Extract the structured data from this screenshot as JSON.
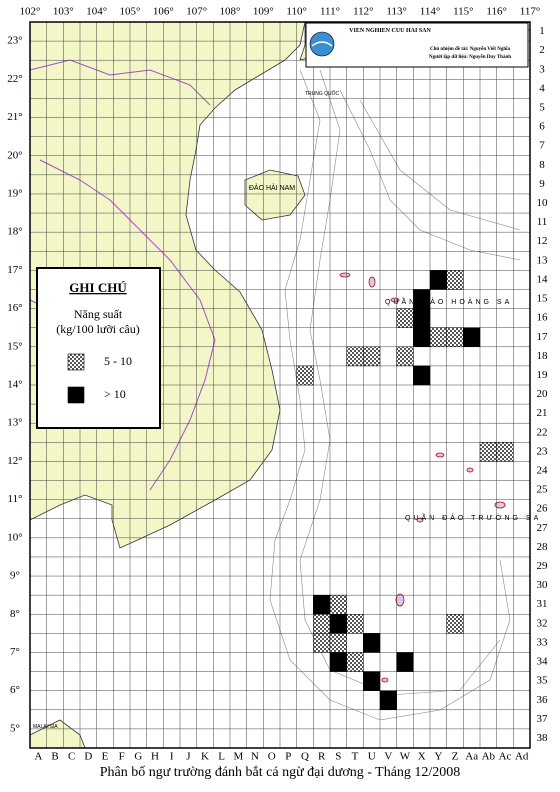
{
  "map": {
    "header": {
      "institute": "VIEN NGHIEN CUU HAI SAN",
      "leader": "Chủ nhiệm đề tài: Nguyễn Viết Nghĩa",
      "author": "Người lập dữ liệu: Nguyễn Duy Thành"
    },
    "longitude_labels": [
      "102°",
      "103°",
      "104°",
      "105°",
      "106°",
      "107°",
      "108°",
      "109°",
      "110°",
      "111°",
      "112°",
      "113°",
      "114°",
      "115°",
      "116°",
      "117°"
    ],
    "latitude_labels": [
      "23°",
      "22°",
      "21°",
      "20°",
      "19°",
      "18°",
      "17°",
      "16°",
      "15°",
      "14°",
      "13°",
      "12°",
      "11°",
      "10°",
      "9°",
      "8°",
      "7°",
      "6°",
      "5°"
    ],
    "columns": [
      "A",
      "B",
      "C",
      "D",
      "E",
      "F",
      "G",
      "H",
      "I",
      "J",
      "K",
      "L",
      "M",
      "N",
      "O",
      "P",
      "Q",
      "R",
      "S",
      "T",
      "U",
      "V",
      "W",
      "X",
      "Y",
      "Z",
      "Aa",
      "Ab",
      "Ac",
      "Ad"
    ],
    "rows": [
      1,
      2,
      3,
      4,
      5,
      6,
      7,
      8,
      9,
      10,
      11,
      12,
      13,
      14,
      15,
      16,
      17,
      18,
      19,
      20,
      21,
      22,
      23,
      24,
      25,
      26,
      27,
      28,
      29,
      30,
      31,
      32,
      33,
      34,
      35,
      36,
      37,
      38
    ],
    "legend": {
      "title": "GHI CHÚ",
      "subtitle": "Năng suất",
      "unit": "(kg/100 lưỡi câu)",
      "items": [
        {
          "label": "5 - 10",
          "cells": [
            [
              "Z",
              14
            ],
            [
              "W",
              16
            ],
            [
              "Y",
              17
            ],
            [
              "Z",
              17
            ],
            [
              "T",
              18
            ],
            [
              "U",
              18
            ],
            [
              "W",
              18
            ],
            [
              "Q",
              19
            ],
            [
              "Ab",
              23
            ],
            [
              "Ac",
              23
            ],
            [
              "S",
              31
            ],
            [
              "R",
              32
            ],
            [
              "T",
              32
            ],
            [
              "Z",
              32
            ],
            [
              "R",
              33
            ],
            [
              "S",
              33
            ],
            [
              "T",
              34
            ]
          ]
        },
        {
          "label": "> 10",
          "cells": [
            [
              "Y",
              14
            ],
            [
              "X",
              15
            ],
            [
              "X",
              16
            ],
            [
              "X",
              17
            ],
            [
              "Aa",
              17
            ],
            [
              "X",
              19
            ],
            [
              "R",
              31
            ],
            [
              "S",
              32
            ],
            [
              "U",
              33
            ],
            [
              "S",
              34
            ],
            [
              "W",
              34
            ],
            [
              "U",
              35
            ],
            [
              "V",
              36
            ]
          ]
        }
      ]
    },
    "place_labels": [
      "TRUNG QUỐC",
      "ĐẢO HẢI NAM",
      "QUẦN ĐẢO HOÀNG SA",
      "QUẦN ĐẢO TRƯỜNG SA",
      "MALAYSIA"
    ],
    "caption": "Phân bố ngư trường đánh bắt cá ngừ đại dương - Tháng 12/2008"
  }
}
